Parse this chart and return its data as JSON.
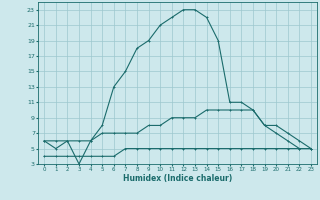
{
  "xlabel": "Humidex (Indice chaleur)",
  "bg_color": "#cde8ec",
  "grid_color": "#9dc8ce",
  "line_color": "#1a6b6b",
  "xlim": [
    -0.5,
    23.5
  ],
  "ylim": [
    3,
    24
  ],
  "xticks": [
    0,
    1,
    2,
    3,
    4,
    5,
    6,
    7,
    8,
    9,
    10,
    11,
    12,
    13,
    14,
    15,
    16,
    17,
    18,
    19,
    20,
    21,
    22,
    23
  ],
  "yticks": [
    3,
    5,
    7,
    9,
    11,
    13,
    15,
    17,
    19,
    21,
    23
  ],
  "curve1_x": [
    0,
    1,
    2,
    3,
    4,
    5,
    6,
    7,
    8,
    9,
    10,
    11,
    12,
    13,
    14,
    15,
    16,
    17,
    18,
    19,
    20,
    21,
    22,
    23
  ],
  "curve1_y": [
    6,
    5,
    6,
    3,
    6,
    8,
    13,
    15,
    18,
    19,
    21,
    22,
    23,
    23,
    22,
    19,
    11,
    11,
    10,
    8,
    7,
    6,
    5,
    5
  ],
  "curve2_x": [
    0,
    1,
    2,
    3,
    4,
    5,
    6,
    7,
    8,
    9,
    10,
    11,
    12,
    13,
    14,
    15,
    16,
    17,
    18,
    19,
    20,
    21,
    22,
    23
  ],
  "curve2_y": [
    6,
    6,
    6,
    6,
    6,
    7,
    7,
    7,
    7,
    8,
    8,
    9,
    9,
    9,
    10,
    10,
    10,
    10,
    10,
    8,
    8,
    7,
    6,
    5
  ],
  "curve3_x": [
    0,
    1,
    2,
    3,
    4,
    5,
    6,
    7,
    8,
    9,
    10,
    11,
    12,
    13,
    14,
    15,
    16,
    17,
    18,
    19,
    20,
    21,
    22,
    23
  ],
  "curve3_y": [
    4,
    4,
    4,
    4,
    4,
    4,
    4,
    5,
    5,
    5,
    5,
    5,
    5,
    5,
    5,
    5,
    5,
    5,
    5,
    5,
    5,
    5,
    5,
    5
  ]
}
